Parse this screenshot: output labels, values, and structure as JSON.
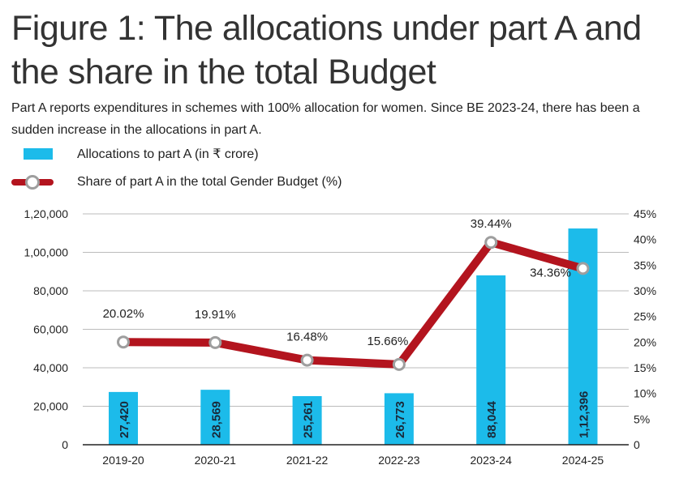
{
  "title": "Figure 1: The allocations under part A and the share in the total Budget",
  "subtitle": "Part A reports expenditures in schemes with 100% allocation for women. Since BE 2023-24, there has been a sudden increase in the allocations in part A.",
  "colors": {
    "bars": "#1cbbea",
    "line": "#b3141e",
    "marker_stroke": "#9e9e9e"
  },
  "chart_data": {
    "type": "bar+line",
    "categories": [
      "2019-20",
      "2020-21",
      "2021-22",
      "2022-23",
      "2023-24",
      "2024-25"
    ],
    "series": [
      {
        "name": "Allocations to part A (in ₹ crore)",
        "type": "bar",
        "axis": "left",
        "values": [
          27420,
          28569,
          25261,
          26773,
          88044,
          112396
        ],
        "labels": [
          "27,420",
          "28,569",
          "25,261",
          "26,773",
          "88,044",
          "1,12,396"
        ]
      },
      {
        "name": "Share of part A in the total Gender Budget (%)",
        "type": "line",
        "axis": "right",
        "values": [
          20.02,
          19.91,
          16.48,
          15.66,
          39.44,
          34.36
        ],
        "labels": [
          "20.02%",
          "19.91%",
          "16.48%",
          "15.66%",
          "39.44%",
          "34.36%"
        ]
      }
    ],
    "left_axis": {
      "range": [
        0,
        120000
      ],
      "ticks": [
        "0",
        "20,000",
        "40,000",
        "60,000",
        "80,000",
        "1,00,000",
        "1,20,000"
      ]
    },
    "right_axis": {
      "range": [
        0,
        45
      ],
      "ticks": [
        "0",
        "5%",
        "10%",
        "15%",
        "20%",
        "25%",
        "30%",
        "35%",
        "40%",
        "45%"
      ]
    },
    "grid": true,
    "legend": "top-left"
  }
}
